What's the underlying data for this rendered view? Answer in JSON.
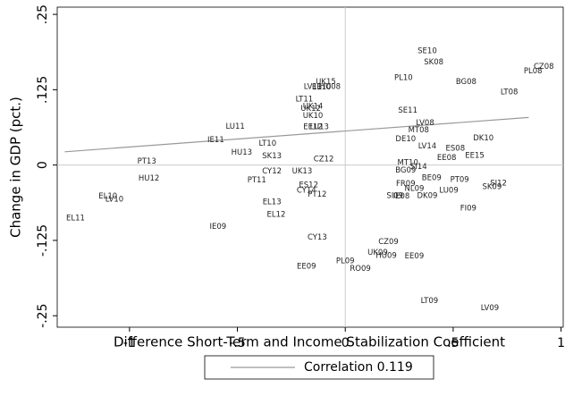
{
  "chart_data": {
    "type": "scatter",
    "x_label": "Difference Short-Term and Income Stabilization Coefficient",
    "y_label": "Change in GDP (pct.)",
    "xlim": [
      -1.335,
      1.01
    ],
    "ylim": [
      -0.269,
      0.262
    ],
    "xticks": [
      -1,
      {
        "value": -0.5,
        "label": "-.5"
      },
      0,
      {
        "value": 0.5,
        "label": ".5"
      },
      1
    ],
    "yticks": [
      {
        "value": 0.25,
        "label": ".25"
      },
      {
        "value": 0.125,
        "label": ".125"
      },
      0,
      {
        "value": -0.125,
        "label": "-.125"
      },
      {
        "value": -0.25,
        "label": "-.25"
      }
    ],
    "reference_lines": {
      "x": 0,
      "y": 0
    },
    "series": [
      {
        "labels": [
          "SE10",
          "SK08",
          "CZ08",
          "PL08",
          "PL10",
          "BG08",
          "LT08",
          "UK15",
          "LV11",
          "EE10",
          "HU08",
          "LT11",
          "UK14",
          "UK12",
          "UK10",
          "SE11",
          "LU11",
          "LU13",
          "LV08",
          "MT08",
          "IE11",
          "DK10",
          "LT10",
          "ES08",
          "EE15",
          "EE08",
          "HU13",
          "SK13",
          "PT13",
          "CY12",
          "UK13",
          "HU12",
          "PT11",
          "BE09",
          "PT09",
          "SI12",
          "SK09",
          "LU09",
          "NL09",
          "DK09",
          "FI09",
          "EL10",
          "LV10",
          "EL13",
          "IE08",
          "SI09",
          "CY14",
          "PT12",
          "EL12",
          "EL11",
          "IE09",
          "CY13",
          "CZ09",
          "UK09",
          "HU09",
          "EE09",
          "PL09",
          "EE09",
          "RO09",
          "LT09",
          "LV09",
          "ES12",
          "FR09",
          "BG09",
          "SI14",
          "CZ12",
          "DE10",
          "EE12",
          "LV14",
          "MT10"
        ],
        "x": [
          0.38,
          0.41,
          0.92,
          0.87,
          0.27,
          0.56,
          0.76,
          -0.09,
          -0.15,
          -0.11,
          -0.07,
          -0.19,
          -0.15,
          -0.16,
          -0.15,
          0.29,
          -0.51,
          -0.12,
          0.37,
          0.34,
          -0.6,
          0.64,
          -0.36,
          0.51,
          0.6,
          0.47,
          -0.48,
          -0.34,
          -0.92,
          -0.34,
          -0.2,
          -0.91,
          -0.41,
          0.4,
          0.53,
          0.71,
          0.68,
          0.48,
          0.32,
          0.38,
          0.57,
          -1.1,
          -1.07,
          -0.34,
          0.26,
          0.23,
          -0.18,
          -0.13,
          -0.32,
          -1.25,
          -0.59,
          -0.13,
          0.2,
          0.15,
          0.19,
          0.32,
          0.0,
          -0.18,
          0.07,
          0.39,
          0.67,
          -0.17,
          0.28,
          0.28,
          0.34,
          -0.1,
          0.28,
          -0.15,
          0.38,
          0.29
        ],
        "y": [
          0.189,
          0.171,
          0.163,
          0.156,
          0.145,
          0.138,
          0.121,
          0.138,
          0.13,
          0.129,
          0.13,
          0.109,
          0.097,
          0.094,
          0.082,
          0.091,
          0.064,
          0.063,
          0.07,
          0.058,
          0.042,
          0.045,
          0.036,
          0.028,
          0.016,
          0.012,
          0.021,
          0.015,
          0.006,
          -0.01,
          -0.01,
          -0.022,
          -0.025,
          -0.021,
          -0.024,
          -0.03,
          -0.036,
          -0.042,
          -0.039,
          -0.051,
          -0.072,
          -0.052,
          -0.057,
          -0.061,
          -0.052,
          -0.051,
          -0.042,
          -0.049,
          -0.082,
          -0.088,
          -0.102,
          -0.12,
          -0.127,
          -0.145,
          -0.15,
          -0.151,
          -0.159,
          -0.168,
          -0.172,
          -0.225,
          -0.237,
          -0.033,
          -0.031,
          -0.009,
          -0.003,
          0.01,
          0.043,
          0.063,
          0.031,
          0.004
        ],
        "color": "#222222"
      }
    ],
    "fit_line": {
      "name": "Correlation 0.119",
      "color": "#999999",
      "x": [
        -1.3,
        0.85
      ],
      "y": [
        0.022,
        0.079
      ]
    }
  }
}
